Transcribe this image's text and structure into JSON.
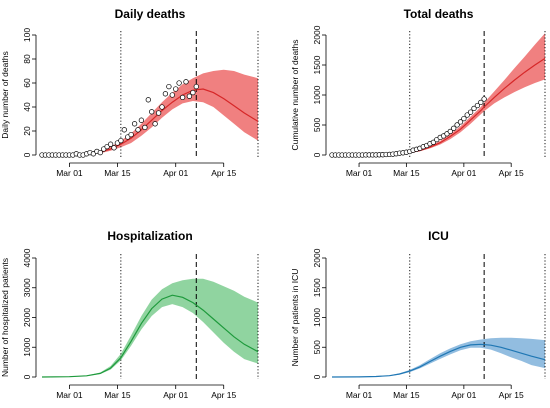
{
  "chart_data": [
    {
      "type": "line",
      "title": "Daily deaths",
      "ylabel": "Daily number of deaths",
      "xlabel": "",
      "xlim": [
        "2020-02-22",
        "2020-04-25"
      ],
      "ylim": [
        0,
        100
      ],
      "yticks": [
        0,
        20,
        40,
        60,
        80,
        100
      ],
      "xticks": [
        {
          "date": "2020-03-01",
          "label": "Mar 01"
        },
        {
          "date": "2020-03-15",
          "label": "Mar 15"
        },
        {
          "date": "2020-04-01",
          "label": "Apr 01"
        },
        {
          "date": "2020-04-15",
          "label": "Apr 15"
        }
      ],
      "vlines": [
        {
          "date": "2020-03-16",
          "style": "dotted"
        },
        {
          "date": "2020-04-07",
          "style": "dashed"
        },
        {
          "date": "2020-04-25",
          "style": "dotted"
        }
      ],
      "band_color": "#f08080",
      "line_color": "#d62728",
      "series": [
        {
          "kind": "fit",
          "x": [
            "2020-02-22",
            "2020-03-01",
            "2020-03-06",
            "2020-03-10",
            "2020-03-13",
            "2020-03-16",
            "2020-03-19",
            "2020-03-22",
            "2020-03-25",
            "2020-03-28",
            "2020-03-31",
            "2020-04-03",
            "2020-04-06",
            "2020-04-09",
            "2020-04-12",
            "2020-04-15",
            "2020-04-18",
            "2020-04-21",
            "2020-04-25"
          ],
          "y": [
            0,
            0.2,
            1,
            2.5,
            5,
            9,
            14,
            21,
            29,
            37,
            44,
            50,
            54,
            55,
            52,
            47,
            41,
            35,
            28
          ]
        },
        {
          "kind": "band_upper",
          "x": [
            "2020-02-22",
            "2020-03-01",
            "2020-03-06",
            "2020-03-10",
            "2020-03-13",
            "2020-03-16",
            "2020-03-19",
            "2020-03-22",
            "2020-03-25",
            "2020-03-28",
            "2020-03-31",
            "2020-04-03",
            "2020-04-06",
            "2020-04-09",
            "2020-04-12",
            "2020-04-15",
            "2020-04-18",
            "2020-04-21",
            "2020-04-25"
          ],
          "y": [
            0,
            0.4,
            1.5,
            3.5,
            7,
            12,
            18,
            26,
            35,
            44,
            52,
            59,
            64,
            68,
            70,
            71,
            70,
            67,
            64
          ]
        },
        {
          "kind": "band_lower",
          "x": [
            "2020-02-22",
            "2020-03-01",
            "2020-03-06",
            "2020-03-10",
            "2020-03-13",
            "2020-03-16",
            "2020-03-19",
            "2020-03-22",
            "2020-03-25",
            "2020-03-28",
            "2020-03-31",
            "2020-04-03",
            "2020-04-06",
            "2020-04-09",
            "2020-04-12",
            "2020-04-15",
            "2020-04-18",
            "2020-04-21",
            "2020-04-25"
          ],
          "y": [
            0,
            0.1,
            0.6,
            1.5,
            3.5,
            6.5,
            10,
            16,
            23,
            31,
            38,
            43,
            45,
            44,
            40,
            33,
            26,
            19,
            12
          ]
        },
        {
          "kind": "observed",
          "x": [
            "2020-02-22",
            "2020-02-23",
            "2020-02-24",
            "2020-02-25",
            "2020-02-26",
            "2020-02-27",
            "2020-02-28",
            "2020-02-29",
            "2020-03-01",
            "2020-03-02",
            "2020-03-03",
            "2020-03-04",
            "2020-03-05",
            "2020-03-06",
            "2020-03-07",
            "2020-03-08",
            "2020-03-09",
            "2020-03-10",
            "2020-03-11",
            "2020-03-12",
            "2020-03-13",
            "2020-03-14",
            "2020-03-15",
            "2020-03-16",
            "2020-03-17",
            "2020-03-18",
            "2020-03-19",
            "2020-03-20",
            "2020-03-21",
            "2020-03-22",
            "2020-03-23",
            "2020-03-24",
            "2020-03-25",
            "2020-03-26",
            "2020-03-27",
            "2020-03-28",
            "2020-03-29",
            "2020-03-30",
            "2020-03-31",
            "2020-04-01",
            "2020-04-02",
            "2020-04-03",
            "2020-04-04",
            "2020-04-05",
            "2020-04-06",
            "2020-04-07"
          ],
          "y": [
            0,
            0,
            0,
            0,
            0,
            0,
            0,
            0,
            0,
            0,
            1,
            0,
            0,
            1,
            2,
            1,
            3,
            2,
            5,
            7,
            9,
            6,
            10,
            12,
            21,
            15,
            17,
            26,
            21,
            29,
            23,
            46,
            36,
            26,
            35,
            40,
            51,
            57,
            50,
            55,
            60,
            48,
            61,
            49,
            52,
            57
          ]
        }
      ]
    },
    {
      "type": "line",
      "title": "Total deaths",
      "ylabel": "Cumulative number of deaths",
      "xlabel": "",
      "xlim": [
        "2020-02-22",
        "2020-04-25"
      ],
      "ylim": [
        0,
        2000
      ],
      "yticks": [
        0,
        500,
        1000,
        1500,
        2000
      ],
      "xticks": [
        {
          "date": "2020-03-01",
          "label": "Mar 01"
        },
        {
          "date": "2020-03-15",
          "label": "Mar 15"
        },
        {
          "date": "2020-04-01",
          "label": "Apr 01"
        },
        {
          "date": "2020-04-15",
          "label": "Apr 15"
        }
      ],
      "vlines": [
        {
          "date": "2020-03-16",
          "style": "dotted"
        },
        {
          "date": "2020-04-07",
          "style": "dashed"
        },
        {
          "date": "2020-04-25",
          "style": "dotted"
        }
      ],
      "band_color": "#f08080",
      "line_color": "#d62728",
      "series": [
        {
          "kind": "fit",
          "x": [
            "2020-02-22",
            "2020-03-01",
            "2020-03-08",
            "2020-03-13",
            "2020-03-16",
            "2020-03-19",
            "2020-03-22",
            "2020-03-25",
            "2020-03-28",
            "2020-03-31",
            "2020-04-03",
            "2020-04-06",
            "2020-04-07",
            "2020-04-10",
            "2020-04-13",
            "2020-04-16",
            "2020-04-19",
            "2020-04-22",
            "2020-04-25"
          ],
          "y": [
            0,
            0,
            5,
            20,
            40,
            75,
            130,
            205,
            310,
            430,
            585,
            740,
            800,
            960,
            1110,
            1250,
            1380,
            1500,
            1610
          ]
        },
        {
          "kind": "band_upper",
          "x": [
            "2020-02-22",
            "2020-03-01",
            "2020-03-08",
            "2020-03-13",
            "2020-03-16",
            "2020-03-19",
            "2020-03-22",
            "2020-03-25",
            "2020-03-28",
            "2020-03-31",
            "2020-04-03",
            "2020-04-06",
            "2020-04-07",
            "2020-04-10",
            "2020-04-13",
            "2020-04-16",
            "2020-04-19",
            "2020-04-22",
            "2020-04-25"
          ],
          "y": [
            0,
            0,
            6,
            24,
            48,
            88,
            150,
            235,
            350,
            480,
            640,
            800,
            870,
            1060,
            1250,
            1450,
            1640,
            1840,
            2030
          ]
        },
        {
          "kind": "band_lower",
          "x": [
            "2020-02-22",
            "2020-03-01",
            "2020-03-08",
            "2020-03-13",
            "2020-03-16",
            "2020-03-19",
            "2020-03-22",
            "2020-03-25",
            "2020-03-28",
            "2020-03-31",
            "2020-04-03",
            "2020-04-06",
            "2020-04-07",
            "2020-04-10",
            "2020-04-13",
            "2020-04-16",
            "2020-04-19",
            "2020-04-22",
            "2020-04-25"
          ],
          "y": [
            0,
            0,
            4,
            16,
            32,
            62,
            110,
            175,
            265,
            380,
            520,
            680,
            730,
            860,
            960,
            1050,
            1130,
            1200,
            1260
          ]
        },
        {
          "kind": "observed",
          "x": [
            "2020-02-22",
            "2020-02-23",
            "2020-02-24",
            "2020-02-25",
            "2020-02-26",
            "2020-02-27",
            "2020-02-28",
            "2020-02-29",
            "2020-03-01",
            "2020-03-02",
            "2020-03-03",
            "2020-03-04",
            "2020-03-05",
            "2020-03-06",
            "2020-03-07",
            "2020-03-08",
            "2020-03-09",
            "2020-03-10",
            "2020-03-11",
            "2020-03-12",
            "2020-03-13",
            "2020-03-14",
            "2020-03-15",
            "2020-03-16",
            "2020-03-17",
            "2020-03-18",
            "2020-03-19",
            "2020-03-20",
            "2020-03-21",
            "2020-03-22",
            "2020-03-23",
            "2020-03-24",
            "2020-03-25",
            "2020-03-26",
            "2020-03-27",
            "2020-03-28",
            "2020-03-29",
            "2020-03-30",
            "2020-03-31",
            "2020-04-01",
            "2020-04-02",
            "2020-04-03",
            "2020-04-04",
            "2020-04-05",
            "2020-04-06",
            "2020-04-07"
          ],
          "y": [
            0,
            0,
            0,
            0,
            0,
            0,
            0,
            0,
            0,
            0,
            1,
            1,
            1,
            2,
            4,
            5,
            8,
            10,
            15,
            22,
            31,
            37,
            47,
            59,
            80,
            95,
            112,
            138,
            159,
            188,
            211,
            257,
            293,
            319,
            354,
            394,
            445,
            502,
            552,
            607,
            667,
            715,
            776,
            825,
            877,
            934
          ]
        }
      ]
    },
    {
      "type": "line",
      "title": "Hospitalization",
      "ylabel": "Number of hospitalized patients",
      "xlabel": "",
      "xlim": [
        "2020-02-22",
        "2020-04-25"
      ],
      "ylim": [
        0,
        4000
      ],
      "yticks": [
        0,
        1000,
        2000,
        3000,
        4000
      ],
      "xticks": [
        {
          "date": "2020-03-01",
          "label": "Mar 01"
        },
        {
          "date": "2020-03-15",
          "label": "Mar 15"
        },
        {
          "date": "2020-04-01",
          "label": "Apr 01"
        },
        {
          "date": "2020-04-15",
          "label": "Apr 15"
        }
      ],
      "vlines": [
        {
          "date": "2020-03-16",
          "style": "dotted"
        },
        {
          "date": "2020-04-07",
          "style": "dashed"
        },
        {
          "date": "2020-04-25",
          "style": "dotted"
        }
      ],
      "band_color": "#90d4a0",
      "line_color": "#1e9a3c",
      "series": [
        {
          "kind": "fit",
          "x": [
            "2020-02-22",
            "2020-03-01",
            "2020-03-06",
            "2020-03-10",
            "2020-03-13",
            "2020-03-16",
            "2020-03-19",
            "2020-03-22",
            "2020-03-25",
            "2020-03-28",
            "2020-03-31",
            "2020-04-03",
            "2020-04-06",
            "2020-04-09",
            "2020-04-12",
            "2020-04-15",
            "2020-04-18",
            "2020-04-21",
            "2020-04-25"
          ],
          "y": [
            0,
            10,
            40,
            120,
            300,
            650,
            1200,
            1800,
            2300,
            2620,
            2750,
            2680,
            2500,
            2250,
            1950,
            1650,
            1350,
            1100,
            850
          ]
        },
        {
          "kind": "band_upper",
          "x": [
            "2020-02-22",
            "2020-03-01",
            "2020-03-06",
            "2020-03-10",
            "2020-03-13",
            "2020-03-16",
            "2020-03-19",
            "2020-03-22",
            "2020-03-25",
            "2020-03-28",
            "2020-03-31",
            "2020-04-03",
            "2020-04-06",
            "2020-04-09",
            "2020-04-12",
            "2020-04-15",
            "2020-04-18",
            "2020-04-21",
            "2020-04-25"
          ],
          "y": [
            0,
            12,
            50,
            150,
            370,
            780,
            1400,
            2050,
            2600,
            2950,
            3150,
            3250,
            3300,
            3300,
            3200,
            3050,
            2900,
            2700,
            2500
          ]
        },
        {
          "kind": "band_lower",
          "x": [
            "2020-02-22",
            "2020-03-01",
            "2020-03-06",
            "2020-03-10",
            "2020-03-13",
            "2020-03-16",
            "2020-03-19",
            "2020-03-22",
            "2020-03-25",
            "2020-03-28",
            "2020-03-31",
            "2020-04-03",
            "2020-04-06",
            "2020-04-09",
            "2020-04-12",
            "2020-04-15",
            "2020-04-18",
            "2020-04-21",
            "2020-04-25"
          ],
          "y": [
            0,
            8,
            32,
            100,
            250,
            560,
            1050,
            1600,
            2050,
            2350,
            2450,
            2350,
            2150,
            1850,
            1500,
            1150,
            850,
            600,
            450
          ]
        }
      ]
    },
    {
      "type": "line",
      "title": "ICU",
      "ylabel": "Number of patients in ICU",
      "xlabel": "",
      "xlim": [
        "2020-02-22",
        "2020-04-25"
      ],
      "ylim": [
        0,
        2000
      ],
      "yticks": [
        0,
        500,
        1000,
        1500,
        2000
      ],
      "xticks": [
        {
          "date": "2020-03-01",
          "label": "Mar 01"
        },
        {
          "date": "2020-03-15",
          "label": "Mar 15"
        },
        {
          "date": "2020-04-01",
          "label": "Apr 01"
        },
        {
          "date": "2020-04-15",
          "label": "Apr 15"
        }
      ],
      "vlines": [
        {
          "date": "2020-03-16",
          "style": "dotted"
        },
        {
          "date": "2020-04-07",
          "style": "dashed"
        },
        {
          "date": "2020-04-25",
          "style": "dotted"
        }
      ],
      "band_color": "#92bde0",
      "line_color": "#1f77b4",
      "series": [
        {
          "kind": "fit",
          "x": [
            "2020-02-22",
            "2020-03-01",
            "2020-03-06",
            "2020-03-10",
            "2020-03-13",
            "2020-03-16",
            "2020-03-19",
            "2020-03-22",
            "2020-03-25",
            "2020-03-28",
            "2020-03-31",
            "2020-04-03",
            "2020-04-06",
            "2020-04-09",
            "2020-04-12",
            "2020-04-15",
            "2020-04-18",
            "2020-04-21",
            "2020-04-25"
          ],
          "y": [
            0,
            2,
            8,
            22,
            50,
            100,
            170,
            260,
            350,
            430,
            500,
            540,
            550,
            535,
            500,
            450,
            400,
            350,
            290
          ]
        },
        {
          "kind": "band_upper",
          "x": [
            "2020-02-22",
            "2020-03-01",
            "2020-03-06",
            "2020-03-10",
            "2020-03-13",
            "2020-03-16",
            "2020-03-19",
            "2020-03-22",
            "2020-03-25",
            "2020-03-28",
            "2020-03-31",
            "2020-04-03",
            "2020-04-06",
            "2020-04-09",
            "2020-04-12",
            "2020-04-15",
            "2020-04-18",
            "2020-04-21",
            "2020-04-25"
          ],
          "y": [
            0,
            3,
            10,
            27,
            62,
            120,
            200,
            300,
            400,
            480,
            550,
            600,
            630,
            650,
            660,
            660,
            650,
            640,
            620
          ]
        },
        {
          "kind": "band_lower",
          "x": [
            "2020-02-22",
            "2020-03-01",
            "2020-03-06",
            "2020-03-10",
            "2020-03-13",
            "2020-03-16",
            "2020-03-19",
            "2020-03-22",
            "2020-03-25",
            "2020-03-28",
            "2020-03-31",
            "2020-04-03",
            "2020-04-06",
            "2020-04-09",
            "2020-04-12",
            "2020-04-15",
            "2020-04-18",
            "2020-04-21",
            "2020-04-25"
          ],
          "y": [
            0,
            1,
            6,
            17,
            40,
            82,
            145,
            225,
            305,
            380,
            450,
            490,
            490,
            460,
            400,
            330,
            270,
            200,
            150
          ]
        }
      ]
    }
  ]
}
